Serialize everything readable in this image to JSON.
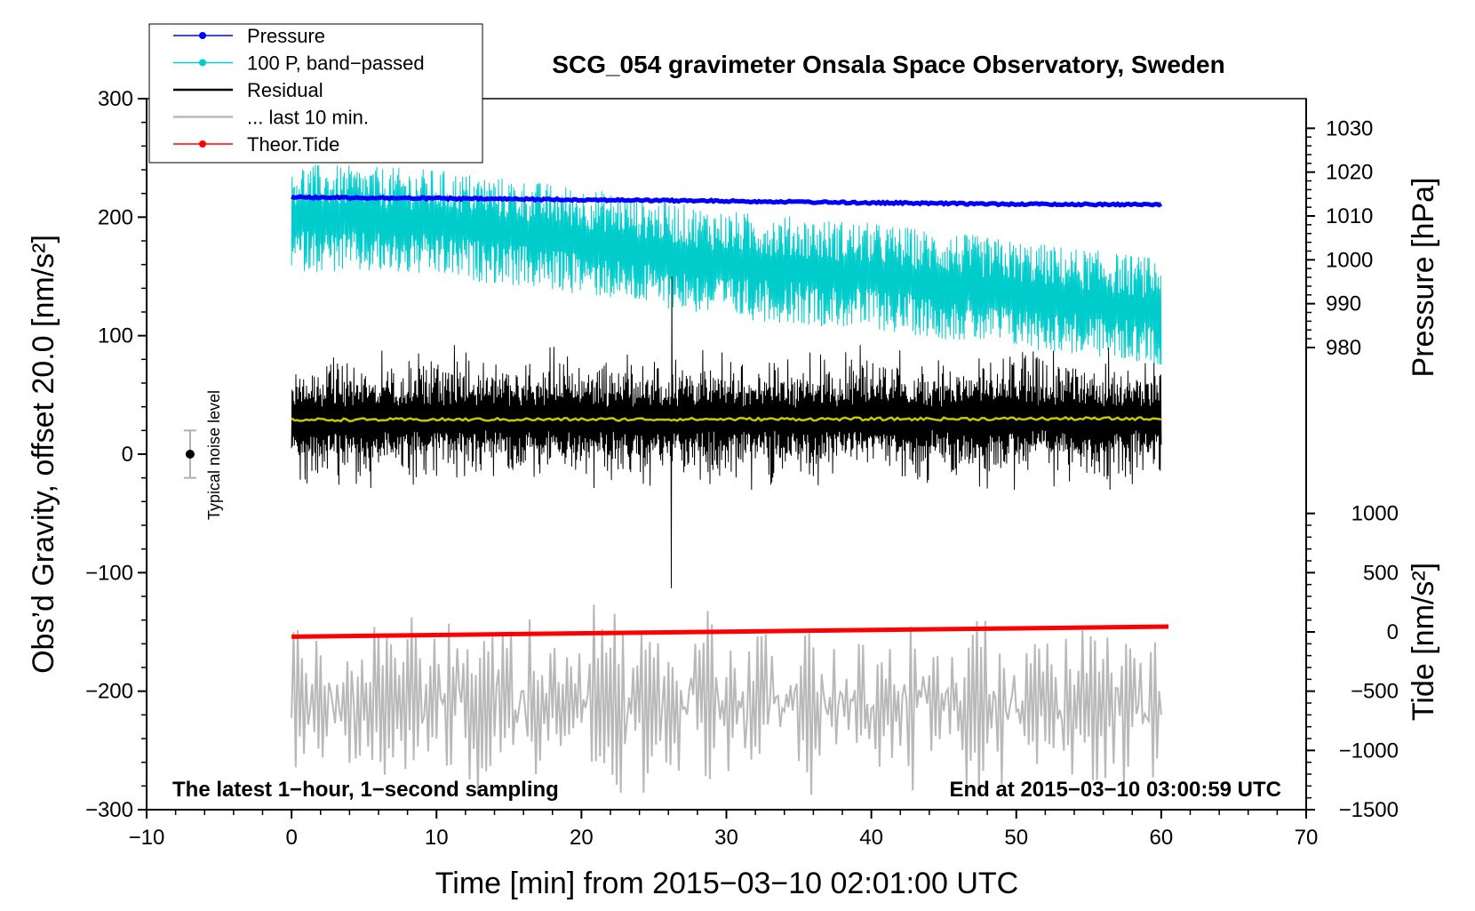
{
  "chart_data": {
    "type": "line",
    "title": "SCG_054 gravimeter Onsala Space Observatory, Sweden",
    "xlabel": "Time [min] from 2015−03−10 02:01:00 UTC",
    "ylabel": "Obs’d Gravity, offset 20.0 [nm/s²]",
    "xlim": [
      -10,
      70
    ],
    "ylim": [
      -300,
      300
    ],
    "x_ticks": [
      "−10",
      "0",
      "10",
      "20",
      "30",
      "40",
      "50",
      "60",
      "70"
    ],
    "x_tick_values": [
      -10,
      0,
      10,
      20,
      30,
      40,
      50,
      60,
      70
    ],
    "y_ticks": [
      "300",
      "200",
      "100",
      "0",
      "−100",
      "−200",
      "−300"
    ],
    "y_tick_values": [
      300,
      200,
      100,
      0,
      -100,
      -200,
      -300
    ],
    "pressure_axis": {
      "label": "Pressure [hPa]",
      "ticks": [
        "1030",
        "1020",
        "1010",
        "1000",
        "990",
        "980"
      ],
      "tick_values": [
        1030,
        1020,
        1010,
        1000,
        990,
        980
      ],
      "gravity_at_1030": 275,
      "gravity_per_hpa": 3.7
    },
    "tide_axis": {
      "label": "Tide [nm/s²]",
      "ticks": [
        "1000",
        "500",
        "0",
        "−500",
        "−1000",
        "−1500"
      ],
      "tick_values": [
        1000,
        500,
        0,
        -500,
        -1000,
        -1500
      ],
      "gravity_at_0": -150,
      "gravity_per_unit": 0.1
    },
    "legend": [
      {
        "label": "Pressure",
        "color": "#0000ff",
        "marker": true
      },
      {
        "label": "100 P, band−passed",
        "color": "#00cccc",
        "marker": true
      },
      {
        "label": "Residual",
        "color": "#000000",
        "marker": false
      },
      {
        "label": "... last 10 min.",
        "color": "#b8b8b8",
        "marker": false
      },
      {
        "label": "Theor.Tide",
        "color": "#ff0000",
        "marker": true
      }
    ],
    "series": [
      {
        "name": "Pressure",
        "axis": "pressure",
        "x": [
          0,
          10,
          20,
          30,
          40,
          50,
          60
        ],
        "values": [
          1014.3,
          1014.0,
          1013.7,
          1013.4,
          1013.0,
          1012.7,
          1012.6
        ]
      },
      {
        "name": "100 P, band−passed",
        "axis": "gravity",
        "x_range": [
          0,
          60
        ],
        "center": [
          200,
          195,
          180,
          160,
          150,
          135,
          120
        ],
        "amplitude": 35
      },
      {
        "name": "Residual",
        "axis": "gravity",
        "x_range": [
          0,
          60
        ],
        "center": 30,
        "amplitude": 45,
        "extremes": {
          "max": 150,
          "min": -113,
          "min_at": 26.2
        }
      },
      {
        "name": "Residual mean",
        "axis": "gravity",
        "x": [
          0,
          60
        ],
        "values": [
          29,
          30
        ]
      },
      {
        "name": "... last 10 min.",
        "axis": "gravity",
        "x_range": [
          0,
          60
        ],
        "center": -210,
        "amplitude": 60
      },
      {
        "name": "Theor.Tide",
        "axis": "tide",
        "x": [
          0,
          60.5
        ],
        "values": [
          -40,
          45
        ]
      }
    ],
    "noise_bar": {
      "label": "Typical noise level",
      "x": -7,
      "center": 0,
      "low": -20,
      "high": 20
    },
    "annotations": {
      "left": "The latest 1−hour, 1−second sampling",
      "right": "End at 2015−03−10 03:00:59 UTC"
    },
    "colors": {
      "pressure": "#0000ff",
      "bandpassed": "#00cccc",
      "residual": "#000000",
      "residual_mean": "#c8c800",
      "last10": "#b8b8b8",
      "tide": "#ff0000"
    }
  }
}
